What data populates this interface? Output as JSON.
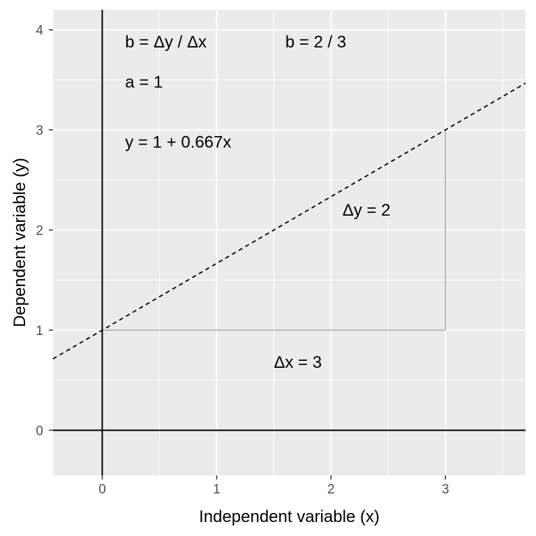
{
  "chart_data": {
    "type": "line",
    "xlabel": "Independent variable (x)",
    "ylabel": "Dependent variable (y)",
    "xlim": [
      -0.43,
      3.7
    ],
    "ylim": [
      -0.45,
      4.2
    ],
    "x_ticks": [
      0,
      1,
      2,
      3
    ],
    "y_ticks": [
      0,
      1,
      2,
      3,
      4
    ],
    "grid": true,
    "series": [
      {
        "style": "dashed",
        "intercept": 1,
        "slope": 0.667,
        "x": [
          -0.43,
          3.7
        ],
        "y": [
          0.713,
          3.467
        ]
      }
    ],
    "reference_lines": [
      {
        "orientation": "horizontal",
        "y": 0
      },
      {
        "orientation": "vertical",
        "x": 0
      }
    ],
    "triangle": {
      "x0": 0,
      "y0": 1,
      "x1": 3,
      "y1": 3,
      "color": "#a6a6a6"
    },
    "annotations": [
      {
        "name": "slope-formula",
        "text": "b = Δy / Δx",
        "x": 0.2,
        "y": 3.88
      },
      {
        "name": "slope-value",
        "text": "b = 2 / 3",
        "x": 1.6,
        "y": 3.88
      },
      {
        "name": "intercept",
        "text": "a = 1",
        "x": 0.2,
        "y": 3.48
      },
      {
        "name": "equation",
        "text": "y = 1 + 0.667x",
        "x": 0.2,
        "y": 2.88
      },
      {
        "name": "delta-y",
        "text": "Δy = 2",
        "x": 2.1,
        "y": 2.2
      },
      {
        "name": "delta-x",
        "text": "Δx = 3",
        "x": 1.5,
        "y": 0.68
      }
    ]
  }
}
